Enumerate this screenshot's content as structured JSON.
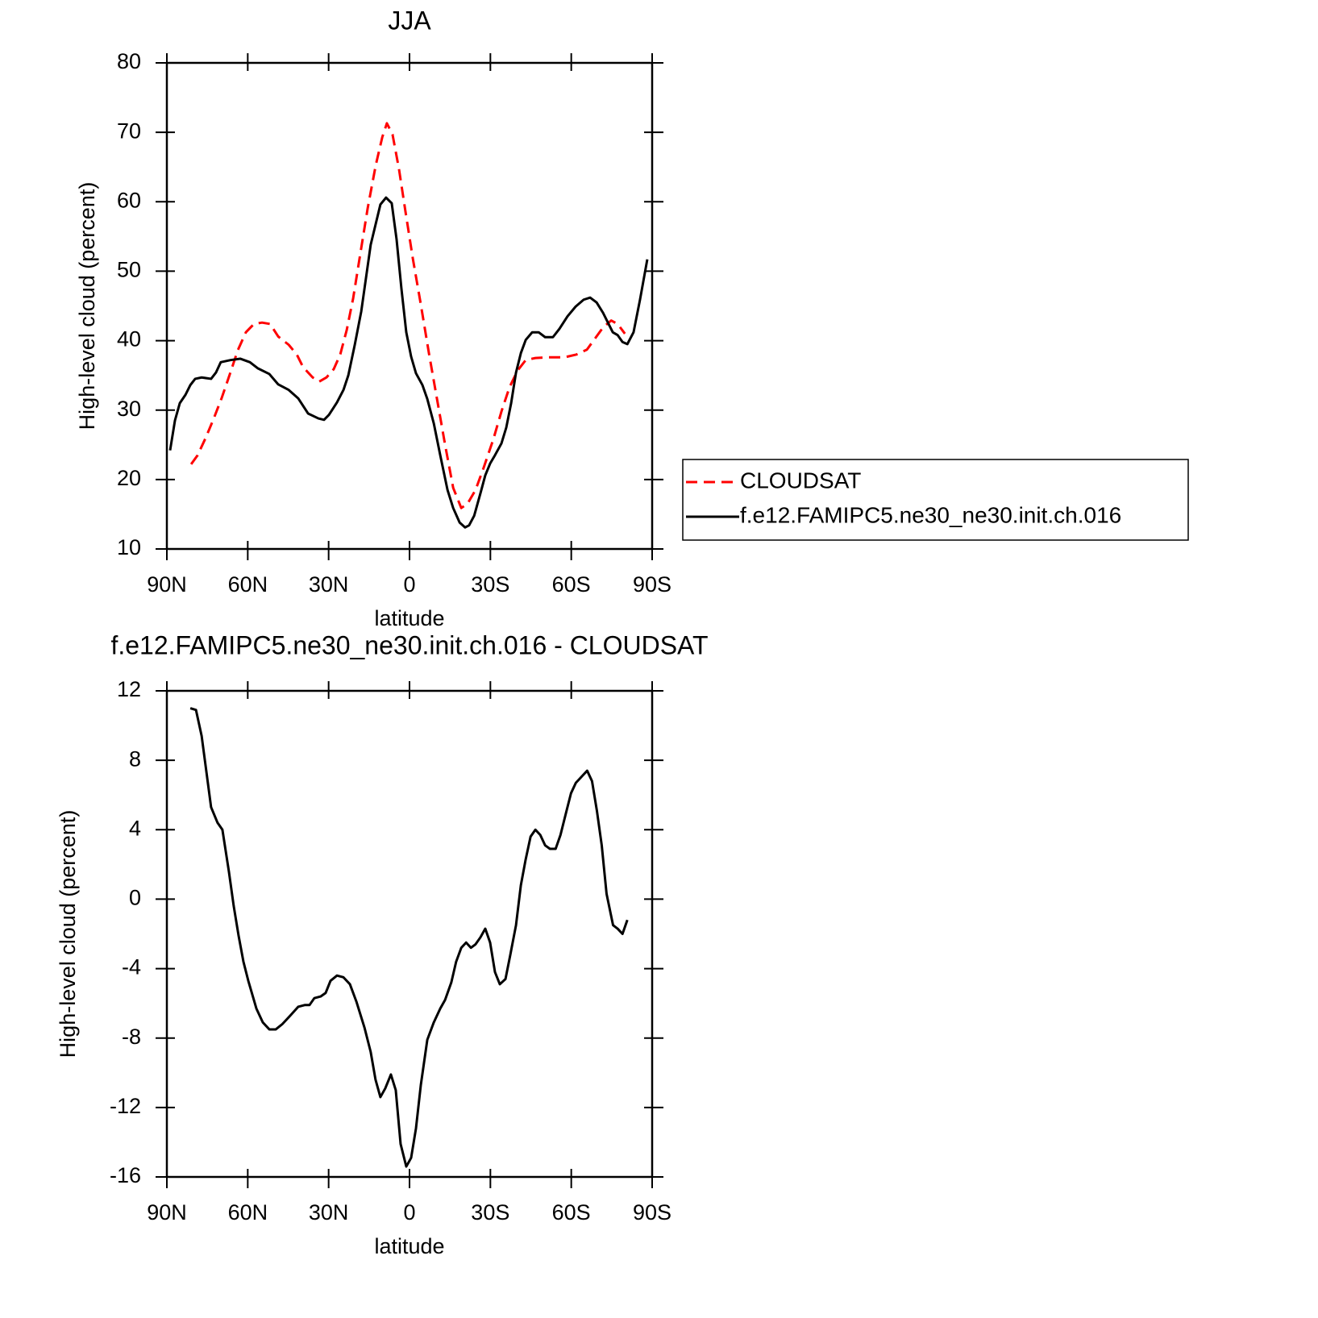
{
  "chart_data": [
    {
      "type": "line",
      "title": "JJA",
      "xlabel": "latitude",
      "ylabel": "High-level cloud (percent)",
      "xlim": [
        90,
        -90
      ],
      "xticks": [
        {
          "value": 90,
          "label": "90N"
        },
        {
          "value": 60,
          "label": "60N"
        },
        {
          "value": 30,
          "label": "30N"
        },
        0,
        {
          "value": -30,
          "label": "30S"
        },
        {
          "value": -60,
          "label": "60S"
        },
        {
          "value": -90,
          "label": "90S"
        }
      ],
      "ylim": [
        10,
        80
      ],
      "yticks": [
        10,
        20,
        30,
        40,
        50,
        60,
        70,
        80
      ],
      "legend": "right",
      "series": [
        {
          "name": "CLOUDSAT",
          "color": "#ff0000",
          "line_style": "dashed",
          "x": [
            81,
            78.6,
            75.6,
            72.7,
            69.7,
            66.7,
            63.7,
            60.7,
            57.7,
            54.7,
            51.7,
            48.7,
            44.8,
            41.8,
            39.5,
            35.9,
            33.5,
            30.8,
            28.1,
            25.7,
            23.3,
            20.9,
            18.5,
            15.5,
            12.5,
            10.1,
            8.4,
            6.3,
            3.9,
            1.5,
            -1.2,
            -4.2,
            -7.2,
            -10.2,
            -13.2,
            -16.2,
            -19.2,
            -21.5,
            -24.5,
            -27.5,
            -31.1,
            -34.1,
            -37.1,
            -40.1,
            -43.1,
            -46.7,
            -51.5,
            -57.5,
            -61.9,
            -65.8,
            -68.8,
            -71.8,
            -74.8,
            -77.2,
            -79.9
          ],
          "values": [
            22.2,
            23.5,
            26,
            28.7,
            31.7,
            35.1,
            38.6,
            41.2,
            42.4,
            42.6,
            42.4,
            40.6,
            39.4,
            38,
            36.2,
            34.7,
            34.1,
            34.7,
            35.9,
            38,
            41.5,
            46.1,
            51.9,
            59.1,
            65.3,
            69.3,
            71.3,
            69.7,
            64.7,
            58.6,
            51.9,
            45.2,
            38.2,
            31.6,
            25,
            18.8,
            15.9,
            16.5,
            18.5,
            21.7,
            25.8,
            29.8,
            33.3,
            35.7,
            37.2,
            37.5,
            37.6,
            37.6,
            38,
            38.7,
            40.3,
            41.9,
            42.9,
            42.4,
            41
          ]
        },
        {
          "name": "f.e12.FAMIPC5.ne30_ne30.init.ch.016",
          "color": "#000000",
          "line_style": "solid",
          "x": [
            88.8,
            87,
            85.2,
            83.1,
            81.3,
            79.5,
            77.1,
            73.6,
            71.8,
            70,
            66.4,
            62.8,
            59.2,
            56.2,
            52,
            48.7,
            44.8,
            41.3,
            37.6,
            33.8,
            31.7,
            29.9,
            26.9,
            24.5,
            22.7,
            20.3,
            17.9,
            14.4,
            10.8,
            8.7,
            6.6,
            4.8,
            3,
            1.2,
            -0.6,
            -2.4,
            -4.8,
            -6.6,
            -9,
            -11.4,
            -14.1,
            -16.2,
            -18.6,
            -20.6,
            -22.1,
            -24,
            -26.3,
            -28.1,
            -29.9,
            -31.7,
            -34.1,
            -35.9,
            -37.7,
            -39.5,
            -41.3,
            -43.1,
            -45.5,
            -47.9,
            -50.3,
            -53.2,
            -55.6,
            -58.6,
            -61.6,
            -64.6,
            -67,
            -69.4,
            -71.8,
            -73.6,
            -75.4,
            -77.2,
            -79,
            -80.8,
            -83.1,
            -85.5,
            -88.2
          ],
          "values": [
            24.2,
            28.5,
            31,
            32.2,
            33.6,
            34.5,
            34.7,
            34.5,
            35.4,
            36.9,
            37.2,
            37.4,
            36.9,
            36,
            35.2,
            33.7,
            32.9,
            31.7,
            29.5,
            28.8,
            28.6,
            29.3,
            31.1,
            32.9,
            35,
            39.4,
            44.2,
            53.8,
            59.6,
            60.6,
            59.8,
            54.6,
            47.5,
            41.2,
            37.7,
            35.3,
            33.6,
            31.6,
            28.1,
            23.5,
            18.5,
            15.9,
            13.8,
            13.1,
            13.4,
            14.8,
            18,
            20.6,
            22.3,
            23.5,
            25.2,
            27.5,
            31,
            35.4,
            38.2,
            40.1,
            41.2,
            41.2,
            40.5,
            40.5,
            41.7,
            43.5,
            44.9,
            45.9,
            46.2,
            45.5,
            44,
            42.6,
            41.2,
            40.8,
            39.8,
            39.5,
            41.2,
            45.9,
            51.7
          ]
        }
      ]
    },
    {
      "type": "line",
      "title": "f.e12.FAMIPC5.ne30_ne30.init.ch.016 - CLOUDSAT",
      "xlabel": "latitude",
      "ylabel": "High-level cloud (percent)",
      "xlim": [
        90,
        -90
      ],
      "xticks": [
        {
          "value": 90,
          "label": "90N"
        },
        {
          "value": 60,
          "label": "60N"
        },
        {
          "value": 30,
          "label": "30N"
        },
        0,
        {
          "value": -30,
          "label": "30S"
        },
        {
          "value": -60,
          "label": "60S"
        },
        {
          "value": -90,
          "label": "90S"
        }
      ],
      "ylim": [
        -16,
        12
      ],
      "yticks": [
        -16,
        -12,
        -8,
        -4,
        0,
        4,
        8,
        12
      ],
      "series": [
        {
          "color": "#000000",
          "line_style": "solid",
          "x": [
            81.3,
            79.2,
            77.1,
            73.6,
            71.2,
            69.4,
            67,
            65.2,
            63.4,
            61.6,
            59.8,
            56.8,
            54.4,
            52,
            49.6,
            47.2,
            44.2,
            41.3,
            38.9,
            37.1,
            35.3,
            32.9,
            31.1,
            29.3,
            26.9,
            24.5,
            22.1,
            19.7,
            16.7,
            14.4,
            12.6,
            10.8,
            9,
            6.9,
            5.1,
            3.3,
            1.2,
            -0.6,
            -2.4,
            -4.2,
            -6.6,
            -9,
            -11.4,
            -13.2,
            -15.5,
            -17.3,
            -19.2,
            -21,
            -22.8,
            -24.5,
            -26.3,
            -28.1,
            -29.9,
            -31.7,
            -33.5,
            -35.6,
            -37.4,
            -39.5,
            -41.3,
            -43.1,
            -44.9,
            -46.7,
            -48.5,
            -50.3,
            -52.1,
            -54.2,
            -56,
            -58.1,
            -59.9,
            -61.7,
            -64.1,
            -65.9,
            -67.7,
            -69.5,
            -71.3,
            -73.1,
            -75.5,
            -77.2,
            -79,
            -80.8
          ],
          "values": [
            11,
            10.9,
            9.4,
            5.3,
            4.4,
            4,
            1.6,
            -0.4,
            -2.1,
            -3.6,
            -4.7,
            -6.3,
            -7.1,
            -7.5,
            -7.5,
            -7.2,
            -6.7,
            -6.2,
            -6.1,
            -6.1,
            -5.7,
            -5.6,
            -5.4,
            -4.7,
            -4.4,
            -4.5,
            -4.9,
            -5.9,
            -7.4,
            -8.8,
            -10.4,
            -11.4,
            -10.9,
            -10.1,
            -11,
            -14.1,
            -15.4,
            -14.9,
            -13.2,
            -10.7,
            -8.1,
            -7.1,
            -6.3,
            -5.8,
            -4.8,
            -3.6,
            -2.8,
            -2.5,
            -2.8,
            -2.6,
            -2.2,
            -1.7,
            -2.5,
            -4.2,
            -4.9,
            -4.6,
            -3.2,
            -1.5,
            0.8,
            2.3,
            3.6,
            4,
            3.7,
            3.1,
            2.9,
            2.9,
            3.7,
            5,
            6.1,
            6.7,
            7.1,
            7.4,
            6.8,
            5.1,
            3.1,
            0.3,
            -1.5,
            -1.7,
            -2,
            -1.2
          ]
        }
      ]
    }
  ]
}
